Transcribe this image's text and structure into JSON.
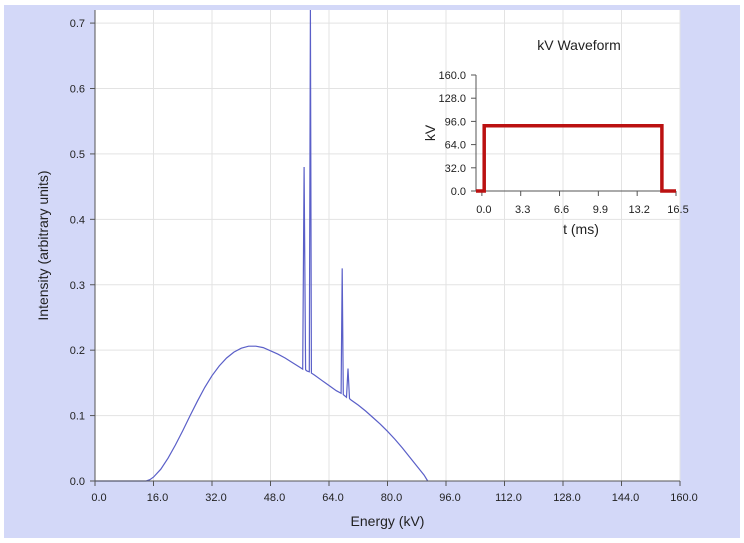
{
  "colors": {
    "panel_background": "#d3d8f8",
    "plot_background": "#ffffff",
    "grid": "#e3e3e3",
    "spectrum_line": "#5a5fc8",
    "waveform_line": "#bb1111",
    "axis": "#555555"
  },
  "chart_data": [
    {
      "type": "line",
      "xlabel": "Energy (kV)",
      "ylabel": "Intensity (arbitrary units)",
      "xlim": [
        0,
        160
      ],
      "ylim": [
        0,
        0.72
      ],
      "xticks": [
        "0.0",
        "16.0",
        "32.0",
        "48.0",
        "64.0",
        "80.0",
        "96.0",
        "112.0",
        "128.0",
        "144.0",
        "160.0"
      ],
      "yticks": [
        "0.0",
        "0.1",
        "0.2",
        "0.3",
        "0.4",
        "0.5",
        "0.6",
        "0.7"
      ],
      "grid": true,
      "series": [
        {
          "points": [
            [
              0,
              0
            ],
            [
              14,
              0
            ],
            [
              15,
              0.002
            ],
            [
              16,
              0.006
            ],
            [
              18,
              0.018
            ],
            [
              20,
              0.035
            ],
            [
              22,
              0.055
            ],
            [
              24,
              0.077
            ],
            [
              26,
              0.1
            ],
            [
              28,
              0.122
            ],
            [
              30,
              0.143
            ],
            [
              32,
              0.161
            ],
            [
              34,
              0.176
            ],
            [
              36,
              0.188
            ],
            [
              38,
              0.197
            ],
            [
              40,
              0.203
            ],
            [
              42,
              0.206
            ],
            [
              44,
              0.206
            ],
            [
              46,
              0.204
            ],
            [
              48,
              0.199
            ],
            [
              50,
              0.194
            ],
            [
              52,
              0.188
            ],
            [
              54,
              0.181
            ],
            [
              56,
              0.174
            ],
            [
              56.8,
              0.171
            ],
            [
              57.2,
              0.48
            ],
            [
              57.6,
              0.17
            ],
            [
              58,
              0.168
            ],
            [
              58.6,
              0.167
            ],
            [
              58.9,
              0.76
            ],
            [
              59.2,
              0.165
            ],
            [
              60,
              0.162
            ],
            [
              62,
              0.154
            ],
            [
              64,
              0.146
            ],
            [
              66,
              0.138
            ],
            [
              67.3,
              0.134
            ],
            [
              67.6,
              0.325
            ],
            [
              67.9,
              0.132
            ],
            [
              68.8,
              0.128
            ],
            [
              69.2,
              0.172
            ],
            [
              69.6,
              0.126
            ],
            [
              70,
              0.124
            ],
            [
              72,
              0.116
            ],
            [
              74,
              0.107
            ],
            [
              76,
              0.097
            ],
            [
              78,
              0.087
            ],
            [
              80,
              0.076
            ],
            [
              82,
              0.064
            ],
            [
              84,
              0.051
            ],
            [
              86,
              0.037
            ],
            [
              88,
              0.023
            ],
            [
              90,
              0.009
            ],
            [
              91,
              0.0
            ]
          ]
        }
      ]
    },
    {
      "type": "line",
      "title": "kV Waveform",
      "xlabel": "t (ms)",
      "ylabel": "kV",
      "xlim": [
        -0.5,
        16.5
      ],
      "ylim": [
        0,
        160
      ],
      "xticks": [
        "0.0",
        "3.3",
        "6.6",
        "9.9",
        "13.2",
        "16.5"
      ],
      "yticks": [
        "0.0",
        "32.0",
        "64.0",
        "96.0",
        "128.0",
        "160.0"
      ],
      "series": [
        {
          "points": [
            [
              -0.5,
              0
            ],
            [
              0.2,
              0
            ],
            [
              0.2,
              90
            ],
            [
              15.3,
              90
            ],
            [
              15.3,
              0
            ],
            [
              16.5,
              0
            ]
          ]
        }
      ]
    }
  ]
}
